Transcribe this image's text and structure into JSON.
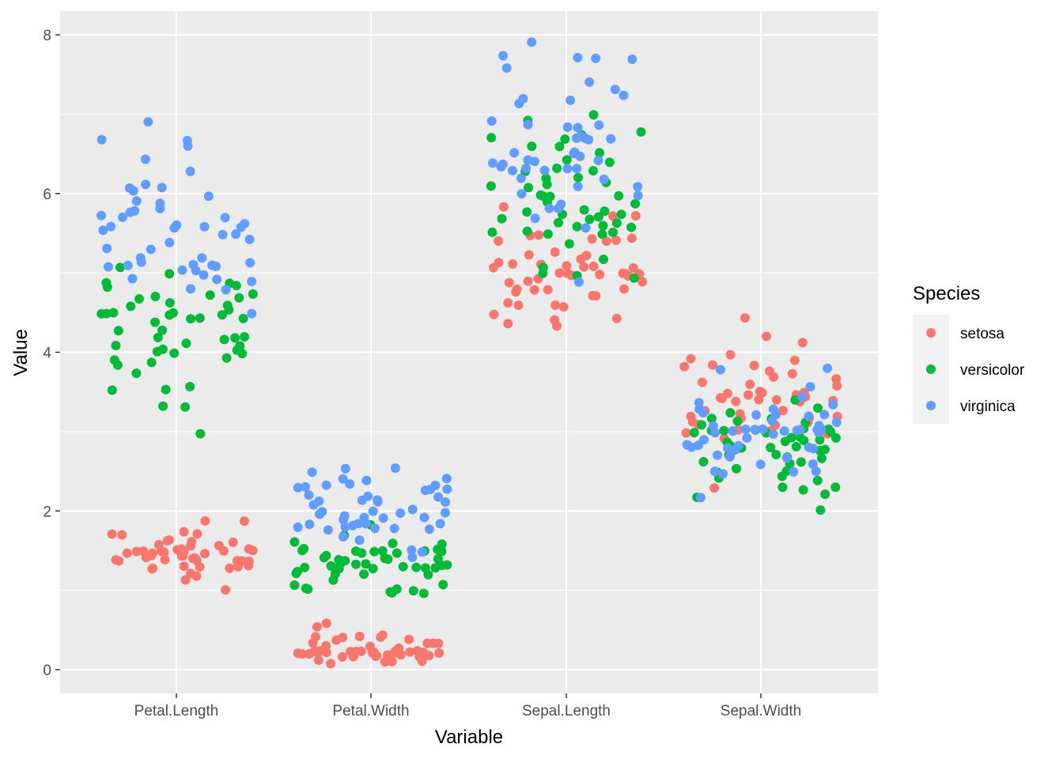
{
  "chart_data": {
    "type": "scatter",
    "jitter": true,
    "xlabel": "Variable",
    "ylabel": "Value",
    "categories": [
      "Petal.Length",
      "Petal.Width",
      "Sepal.Length",
      "Sepal.Width"
    ],
    "ylim": [
      -0.3,
      8.3
    ],
    "yticks": [
      0,
      2,
      4,
      6,
      8
    ],
    "grid": true,
    "legend": {
      "title": "Species",
      "position": "right"
    },
    "series": [
      {
        "name": "setosa",
        "color": "#F8766D",
        "values": [
          [
            1.4,
            1.4,
            1.3,
            1.5,
            1.4,
            1.7,
            1.4,
            1.5,
            1.4,
            1.5,
            1.5,
            1.6,
            1.4,
            1.1,
            1.2,
            1.5,
            1.3,
            1.4,
            1.7,
            1.5,
            1.7,
            1.5,
            1.0,
            1.7,
            1.9,
            1.6,
            1.6,
            1.5,
            1.4,
            1.6,
            1.6,
            1.5,
            1.5,
            1.4,
            1.5,
            1.2,
            1.3,
            1.4,
            1.3,
            1.5,
            1.3,
            1.3,
            1.3,
            1.6,
            1.9,
            1.4,
            1.6,
            1.4,
            1.5,
            1.4
          ],
          [
            0.2,
            0.2,
            0.2,
            0.2,
            0.2,
            0.4,
            0.3,
            0.2,
            0.2,
            0.1,
            0.2,
            0.2,
            0.1,
            0.1,
            0.2,
            0.4,
            0.4,
            0.3,
            0.3,
            0.3,
            0.2,
            0.4,
            0.2,
            0.5,
            0.2,
            0.2,
            0.4,
            0.2,
            0.2,
            0.2,
            0.2,
            0.4,
            0.1,
            0.2,
            0.2,
            0.2,
            0.2,
            0.1,
            0.2,
            0.2,
            0.3,
            0.3,
            0.2,
            0.6,
            0.4,
            0.3,
            0.2,
            0.2,
            0.2,
            0.2
          ],
          [
            5.1,
            4.9,
            4.7,
            4.6,
            5.0,
            5.4,
            4.6,
            5.0,
            4.4,
            4.9,
            5.4,
            4.8,
            4.8,
            4.3,
            5.8,
            5.7,
            5.4,
            5.1,
            5.7,
            5.1,
            5.4,
            5.1,
            4.6,
            5.1,
            4.8,
            5.0,
            5.0,
            5.2,
            5.2,
            4.7,
            4.8,
            5.4,
            5.2,
            5.5,
            4.9,
            5.0,
            5.5,
            4.9,
            4.4,
            5.1,
            5.0,
            4.5,
            4.4,
            5.0,
            5.1,
            4.8,
            5.1,
            4.6,
            5.3,
            5.0
          ],
          [
            3.5,
            3.0,
            3.2,
            3.1,
            3.6,
            3.9,
            3.4,
            3.4,
            2.9,
            3.1,
            3.7,
            3.4,
            3.0,
            3.0,
            4.0,
            4.4,
            3.9,
            3.5,
            3.8,
            3.8,
            3.4,
            3.7,
            3.6,
            3.3,
            3.4,
            3.0,
            3.4,
            3.5,
            3.4,
            3.2,
            3.1,
            3.4,
            4.1,
            4.2,
            3.1,
            3.2,
            3.5,
            3.6,
            3.0,
            3.4,
            3.5,
            2.3,
            3.2,
            3.5,
            3.8,
            3.0,
            3.8,
            3.2,
            3.7,
            3.3
          ]
        ]
      },
      {
        "name": "versicolor",
        "color": "#00BA38",
        "values": [
          [
            4.7,
            4.5,
            4.9,
            4.0,
            4.6,
            4.5,
            4.7,
            3.3,
            4.6,
            3.9,
            3.5,
            4.2,
            4.0,
            4.7,
            3.6,
            4.4,
            4.5,
            4.1,
            4.5,
            3.9,
            4.8,
            4.0,
            4.9,
            4.7,
            4.3,
            4.4,
            4.8,
            5.0,
            4.5,
            3.5,
            3.8,
            3.7,
            3.9,
            5.1,
            4.5,
            4.5,
            4.7,
            4.4,
            4.1,
            4.0,
            4.4,
            4.6,
            4.0,
            3.3,
            4.2,
            4.2,
            4.2,
            4.3,
            3.0,
            4.1
          ],
          [
            1.4,
            1.5,
            1.5,
            1.3,
            1.5,
            1.3,
            1.6,
            1.0,
            1.3,
            1.4,
            1.0,
            1.5,
            1.0,
            1.4,
            1.3,
            1.4,
            1.5,
            1.0,
            1.5,
            1.1,
            1.8,
            1.3,
            1.5,
            1.2,
            1.3,
            1.4,
            1.4,
            1.7,
            1.5,
            1.0,
            1.1,
            1.0,
            1.2,
            1.6,
            1.5,
            1.6,
            1.5,
            1.3,
            1.3,
            1.3,
            1.2,
            1.4,
            1.2,
            1.0,
            1.3,
            1.2,
            1.3,
            1.3,
            1.1,
            1.3
          ],
          [
            7.0,
            6.4,
            6.9,
            5.5,
            6.5,
            5.7,
            6.3,
            4.9,
            6.6,
            5.2,
            5.0,
            5.9,
            6.0,
            6.1,
            5.6,
            6.7,
            5.6,
            5.8,
            6.2,
            5.6,
            5.9,
            6.1,
            6.3,
            6.1,
            6.4,
            6.6,
            6.8,
            6.7,
            6.0,
            5.7,
            5.5,
            5.5,
            5.8,
            6.0,
            5.4,
            6.0,
            6.7,
            6.3,
            5.6,
            5.5,
            5.5,
            6.1,
            5.8,
            5.0,
            5.6,
            5.7,
            5.7,
            6.2,
            5.1,
            5.7
          ],
          [
            3.2,
            3.2,
            3.1,
            2.3,
            2.8,
            2.8,
            3.3,
            2.4,
            2.9,
            2.7,
            2.0,
            3.0,
            2.2,
            2.9,
            2.9,
            3.1,
            3.0,
            2.7,
            2.2,
            2.5,
            3.2,
            2.8,
            2.5,
            2.8,
            2.9,
            3.0,
            2.8,
            3.0,
            2.9,
            2.6,
            2.4,
            2.4,
            2.7,
            2.7,
            3.0,
            3.4,
            3.1,
            2.3,
            3.0,
            2.5,
            2.6,
            3.0,
            2.6,
            2.3,
            2.7,
            3.0,
            2.9,
            2.9,
            2.5,
            2.8
          ]
        ]
      },
      {
        "name": "virginica",
        "color": "#619CFF",
        "values": [
          [
            6.0,
            5.1,
            5.9,
            5.6,
            5.8,
            6.6,
            4.5,
            6.3,
            5.8,
            6.1,
            5.1,
            5.3,
            5.5,
            5.0,
            5.1,
            5.3,
            5.5,
            6.7,
            6.9,
            5.0,
            5.7,
            4.9,
            6.7,
            4.9,
            5.7,
            6.0,
            4.8,
            4.9,
            5.6,
            5.8,
            6.1,
            6.4,
            5.6,
            5.1,
            5.6,
            6.1,
            5.6,
            5.5,
            4.8,
            5.4,
            5.6,
            5.1,
            5.1,
            5.9,
            5.7,
            5.2,
            5.0,
            5.2,
            5.4,
            5.1
          ],
          [
            2.5,
            1.9,
            2.1,
            1.8,
            2.2,
            2.1,
            1.7,
            1.8,
            1.8,
            2.5,
            2.0,
            1.9,
            2.1,
            2.0,
            2.4,
            2.3,
            1.8,
            2.2,
            2.3,
            1.5,
            2.3,
            2.0,
            2.0,
            1.8,
            2.1,
            1.8,
            1.8,
            1.8,
            2.1,
            1.6,
            1.9,
            2.0,
            2.2,
            1.5,
            1.4,
            2.3,
            2.4,
            1.8,
            1.8,
            2.1,
            2.4,
            2.3,
            1.9,
            2.3,
            2.5,
            2.3,
            1.9,
            2.0,
            2.3,
            1.8
          ],
          [
            6.3,
            5.8,
            7.1,
            6.3,
            6.5,
            7.6,
            4.9,
            7.3,
            6.7,
            7.2,
            6.5,
            6.4,
            6.8,
            5.7,
            5.8,
            6.4,
            6.5,
            7.7,
            7.7,
            6.0,
            6.9,
            5.6,
            7.7,
            6.3,
            6.7,
            7.2,
            6.2,
            6.1,
            6.4,
            7.2,
            7.4,
            7.9,
            6.4,
            6.3,
            6.1,
            7.7,
            6.3,
            6.4,
            6.0,
            6.9,
            6.7,
            6.9,
            5.8,
            6.8,
            6.7,
            6.7,
            6.3,
            6.5,
            6.2,
            5.9
          ],
          [
            3.3,
            2.7,
            3.0,
            2.9,
            3.0,
            3.0,
            2.5,
            2.9,
            2.5,
            3.6,
            3.2,
            2.7,
            3.0,
            2.5,
            2.8,
            3.2,
            3.0,
            3.8,
            2.6,
            2.2,
            3.2,
            2.8,
            2.8,
            2.7,
            3.3,
            3.2,
            2.8,
            3.0,
            2.8,
            3.0,
            2.8,
            3.8,
            2.8,
            2.8,
            2.6,
            3.0,
            3.4,
            3.1,
            3.0,
            3.1,
            3.1,
            3.1,
            2.7,
            3.2,
            3.3,
            3.0,
            2.5,
            3.0,
            3.4,
            3.0
          ]
        ]
      }
    ]
  }
}
